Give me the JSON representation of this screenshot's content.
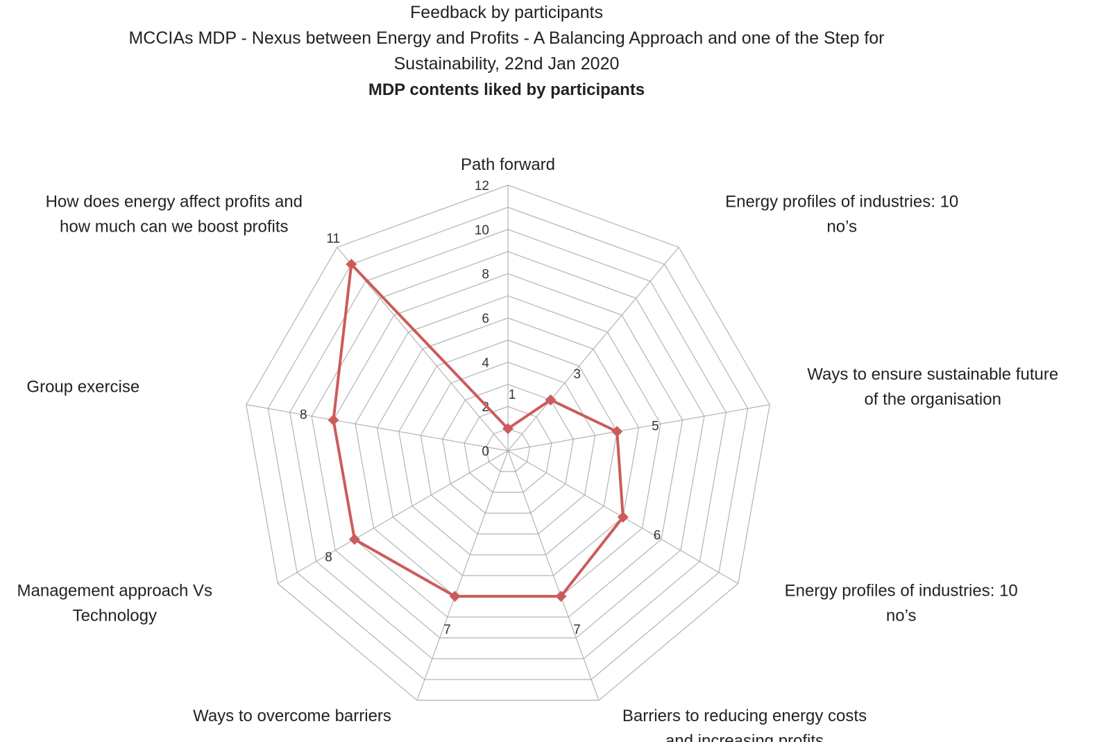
{
  "title_lines": [
    "Feedback by participants",
    "MCCIAs MDP  - Nexus between Energy and Profits - A Balancing Approach and one of the Step for",
    "Sustainability, 22nd Jan 2020"
  ],
  "subtitle": "MDP contents liked by participants",
  "chart_data": {
    "type": "radar",
    "title": "MDP contents liked by participants",
    "rmin": 0,
    "rmax": 12,
    "ticks": [
      0,
      2,
      4,
      6,
      8,
      10,
      12
    ],
    "grid": true,
    "legend": "none",
    "color": "#cc5b5b",
    "categories": [
      "Path forward",
      "Energy profiles of industries: 10 no's",
      "Ways to ensure sustainable future of the organisation",
      "Energy profiles of industries: 10 no's",
      "Barriers to reducing energy costs and increasing profits",
      "Ways to overcome barriers",
      "Management approach Vs Technology",
      "Group exercise",
      "How does energy affect profits and how much can we boost profits"
    ],
    "category_lines": [
      [
        "Path forward"
      ],
      [
        "Energy profiles of industries: 10",
        "no’s"
      ],
      [
        "Ways to ensure sustainable future",
        "of the organisation"
      ],
      [
        "Energy profiles of industries: 10",
        "no’s"
      ],
      [
        "Barriers to reducing energy costs",
        "and increasing profits"
      ],
      [
        "Ways to overcome barriers"
      ],
      [
        "Management approach Vs",
        "Technology"
      ],
      [
        "Group exercise"
      ],
      [
        "How does energy affect profits and",
        "how much can we boost profits"
      ]
    ],
    "values": [
      1,
      3,
      5,
      6,
      7,
      7,
      8,
      8,
      11
    ]
  }
}
